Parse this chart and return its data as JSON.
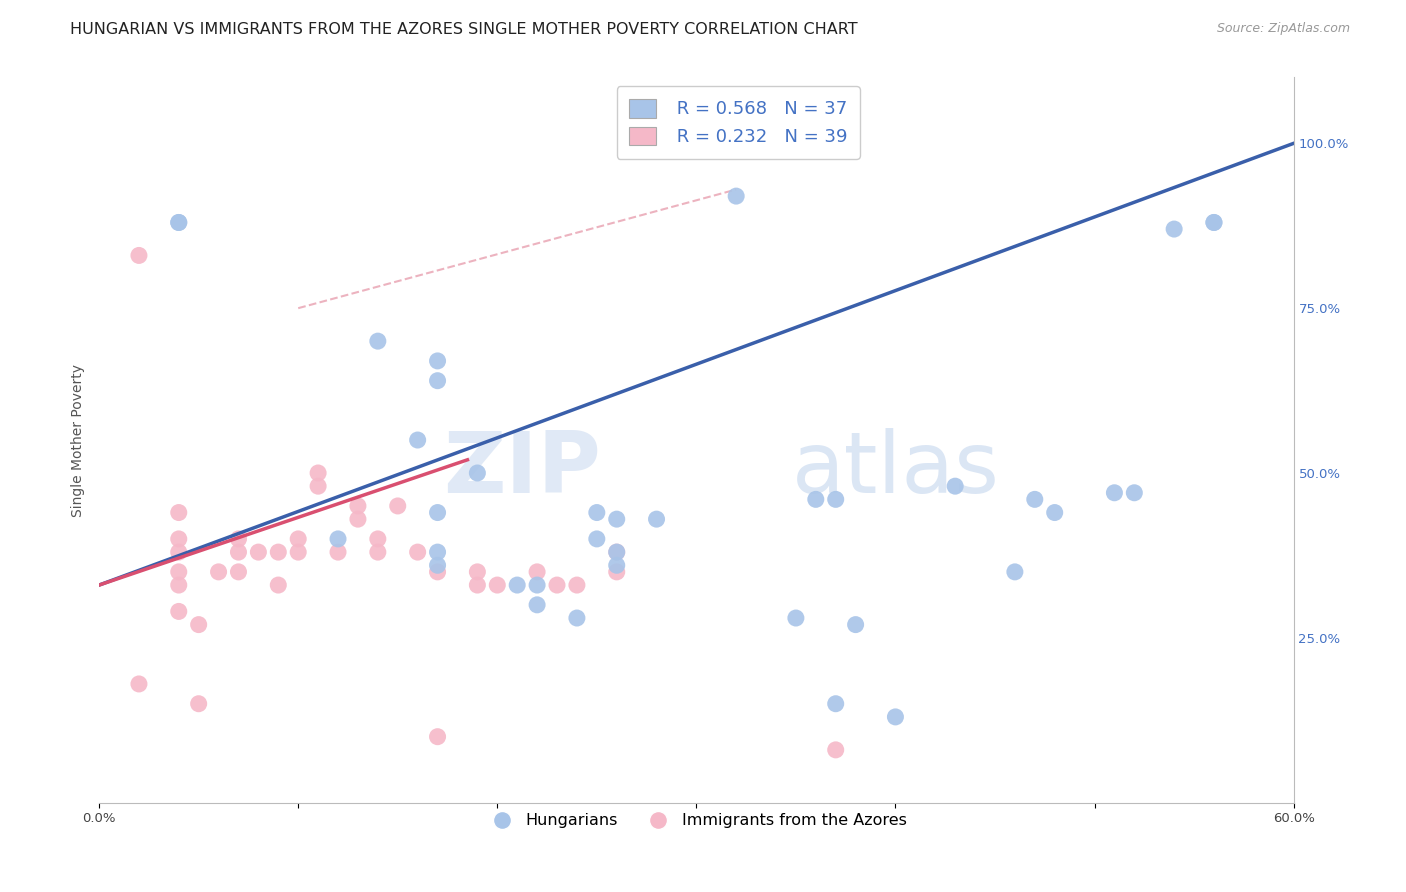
{
  "title": "HUNGARIAN VS IMMIGRANTS FROM THE AZORES SINGLE MOTHER POVERTY CORRELATION CHART",
  "source": "Source: ZipAtlas.com",
  "ylabel": "Single Mother Poverty",
  "xlim": [
    0.0,
    0.6
  ],
  "ylim": [
    0.0,
    1.1
  ],
  "xticks": [
    0.0,
    0.1,
    0.2,
    0.3,
    0.4,
    0.5,
    0.6
  ],
  "xticklabels": [
    "0.0%",
    "",
    "",
    "",
    "",
    "",
    "60.0%"
  ],
  "yticks_right": [
    0.25,
    0.5,
    0.75,
    1.0
  ],
  "ytick_right_labels": [
    "25.0%",
    "50.0%",
    "75.0%",
    "100.0%"
  ],
  "blue_R": 0.568,
  "blue_N": 37,
  "pink_R": 0.232,
  "pink_N": 39,
  "blue_color": "#a8c4e8",
  "pink_color": "#f5b8c8",
  "blue_line_color": "#3a5faa",
  "pink_line_color": "#d94f70",
  "blue_label": "Hungarians",
  "pink_label": "Immigrants from the Azores",
  "legend_R_N_color": "#4472c4",
  "watermark_zip": "ZIP",
  "watermark_atlas": "atlas",
  "blue_scatter_x": [
    0.04,
    0.04,
    0.32,
    0.14,
    0.17,
    0.16,
    0.19,
    0.12,
    0.17,
    0.17,
    0.21,
    0.22,
    0.22,
    0.24,
    0.25,
    0.26,
    0.25,
    0.26,
    0.26,
    0.28,
    0.36,
    0.37,
    0.35,
    0.38,
    0.4,
    0.43,
    0.46,
    0.47,
    0.48,
    0.51,
    0.52,
    0.54,
    0.56,
    0.56,
    0.37,
    0.17,
    0.17
  ],
  "blue_scatter_y": [
    0.88,
    0.88,
    0.92,
    0.7,
    0.67,
    0.55,
    0.5,
    0.4,
    0.38,
    0.36,
    0.33,
    0.33,
    0.3,
    0.28,
    0.44,
    0.43,
    0.4,
    0.38,
    0.36,
    0.43,
    0.46,
    0.46,
    0.28,
    0.27,
    0.13,
    0.48,
    0.35,
    0.46,
    0.44,
    0.47,
    0.47,
    0.87,
    0.88,
    0.88,
    0.15,
    0.64,
    0.44
  ],
  "pink_scatter_x": [
    0.02,
    0.02,
    0.05,
    0.04,
    0.04,
    0.04,
    0.04,
    0.04,
    0.04,
    0.05,
    0.06,
    0.07,
    0.07,
    0.07,
    0.08,
    0.09,
    0.09,
    0.1,
    0.1,
    0.11,
    0.11,
    0.12,
    0.13,
    0.13,
    0.14,
    0.14,
    0.15,
    0.16,
    0.17,
    0.17,
    0.19,
    0.19,
    0.2,
    0.22,
    0.23,
    0.24,
    0.26,
    0.26,
    0.37
  ],
  "pink_scatter_y": [
    0.83,
    0.18,
    0.15,
    0.44,
    0.4,
    0.38,
    0.35,
    0.33,
    0.29,
    0.27,
    0.35,
    0.4,
    0.38,
    0.35,
    0.38,
    0.38,
    0.33,
    0.4,
    0.38,
    0.5,
    0.48,
    0.38,
    0.45,
    0.43,
    0.4,
    0.38,
    0.45,
    0.38,
    0.35,
    0.1,
    0.35,
    0.33,
    0.33,
    0.35,
    0.33,
    0.33,
    0.38,
    0.35,
    0.08
  ],
  "blue_line_x": [
    0.0,
    0.6
  ],
  "blue_line_y": [
    0.33,
    1.0
  ],
  "pink_line_x": [
    0.0,
    0.185
  ],
  "pink_line_y": [
    0.33,
    0.52
  ],
  "diag_line_x": [
    0.1,
    0.32
  ],
  "diag_line_y": [
    0.75,
    0.93
  ],
  "background_color": "#ffffff",
  "grid_color": "#e0e0e0",
  "title_fontsize": 11.5,
  "axis_label_fontsize": 10,
  "tick_fontsize": 9.5
}
